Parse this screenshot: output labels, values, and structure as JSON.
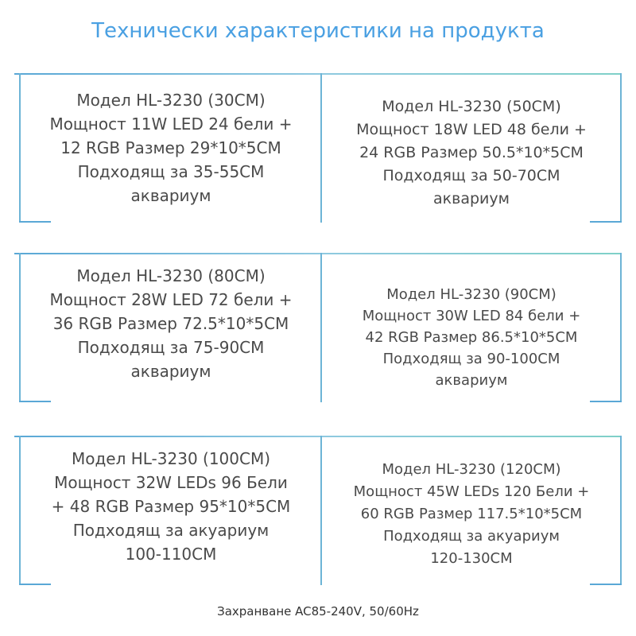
{
  "title": "Технически характеристики на продукта",
  "rows": [
    {
      "left": "Модел HL-3230 (30CM)\nМощност 11W LED 24 бели +\n12 RGB Размер 29*10*5CM\nПодходящ за 35-55CM\nаквариум",
      "right": "Модел HL-3230 (50CM)\nМощност 18W LED 48 бели +\n24 RGB Размер 50.5*10*5CM\nПодходящ за 50-70CM\nаквариум"
    },
    {
      "left": "Модел HL-3230 (80CM)\nМощност 28W LED 72 бели +\n36 RGB Размер 72.5*10*5CM\nПодходящ за 75-90CM\nаквариум",
      "right": "Модел HL-3230 (90CM)\nМощност 30W LED 84 бели +\n42 RGB Размер 86.5*10*5CM\nПодходящ за 90-100CM\nаквариум"
    },
    {
      "left": "Модел HL-3230 (100CM)\nМощност 32W LEDs 96 Бели\n+ 48 RGB Размер 95*10*5CM\nПодходящ за акуариум\n100-110CM",
      "right": "Модел HL-3230 (120CM)\nМощност 45W LEDs 120 Бели +\n60 RGB Размер 117.5*10*5CM\nПодходящ за акуариум\n120-130CM"
    }
  ],
  "footer": "Захранване AC85-240V, 50/60Hz",
  "colors": {
    "title": "#4aa0e2",
    "lines": "#6db4d6"
  }
}
